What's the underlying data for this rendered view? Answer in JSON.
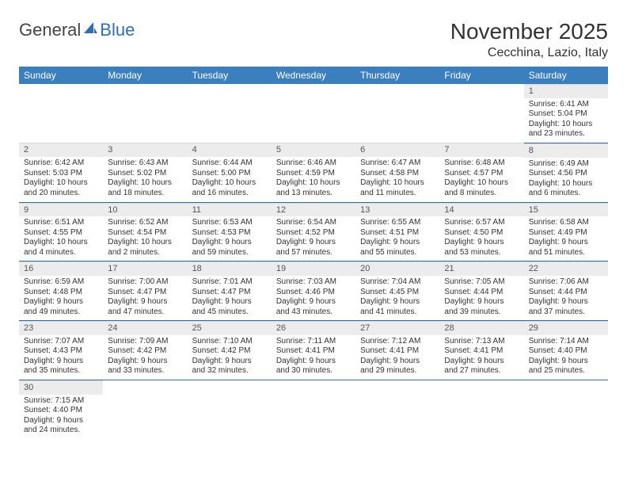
{
  "logo": {
    "text1": "General",
    "text2": "Blue"
  },
  "title": "November 2025",
  "subtitle": "Cecchina, Lazio, Italy",
  "colors": {
    "header_bg": "#3b7fbf",
    "header_text": "#ffffff",
    "daynum_bg": "#ececec",
    "row_sep": "#2f6fb0",
    "logo_accent": "#2f6fb0",
    "page_bg": "#ffffff",
    "body_text": "#333333"
  },
  "fontsize": {
    "title": 28,
    "subtitle": 16,
    "weekday": 12,
    "cell": 10
  },
  "weekdays": [
    "Sunday",
    "Monday",
    "Tuesday",
    "Wednesday",
    "Thursday",
    "Friday",
    "Saturday"
  ],
  "cells": [
    [
      {
        "n": "",
        "sr": "",
        "ss": "",
        "dl1": "",
        "dl2": ""
      },
      {
        "n": "",
        "sr": "",
        "ss": "",
        "dl1": "",
        "dl2": ""
      },
      {
        "n": "",
        "sr": "",
        "ss": "",
        "dl1": "",
        "dl2": ""
      },
      {
        "n": "",
        "sr": "",
        "ss": "",
        "dl1": "",
        "dl2": ""
      },
      {
        "n": "",
        "sr": "",
        "ss": "",
        "dl1": "",
        "dl2": ""
      },
      {
        "n": "",
        "sr": "",
        "ss": "",
        "dl1": "",
        "dl2": ""
      },
      {
        "n": "1",
        "sr": "Sunrise: 6:41 AM",
        "ss": "Sunset: 5:04 PM",
        "dl1": "Daylight: 10 hours",
        "dl2": "and 23 minutes."
      }
    ],
    [
      {
        "n": "2",
        "sr": "Sunrise: 6:42 AM",
        "ss": "Sunset: 5:03 PM",
        "dl1": "Daylight: 10 hours",
        "dl2": "and 20 minutes."
      },
      {
        "n": "3",
        "sr": "Sunrise: 6:43 AM",
        "ss": "Sunset: 5:02 PM",
        "dl1": "Daylight: 10 hours",
        "dl2": "and 18 minutes."
      },
      {
        "n": "4",
        "sr": "Sunrise: 6:44 AM",
        "ss": "Sunset: 5:00 PM",
        "dl1": "Daylight: 10 hours",
        "dl2": "and 16 minutes."
      },
      {
        "n": "5",
        "sr": "Sunrise: 6:46 AM",
        "ss": "Sunset: 4:59 PM",
        "dl1": "Daylight: 10 hours",
        "dl2": "and 13 minutes."
      },
      {
        "n": "6",
        "sr": "Sunrise: 6:47 AM",
        "ss": "Sunset: 4:58 PM",
        "dl1": "Daylight: 10 hours",
        "dl2": "and 11 minutes."
      },
      {
        "n": "7",
        "sr": "Sunrise: 6:48 AM",
        "ss": "Sunset: 4:57 PM",
        "dl1": "Daylight: 10 hours",
        "dl2": "and 8 minutes."
      },
      {
        "n": "8",
        "sr": "Sunrise: 6:49 AM",
        "ss": "Sunset: 4:56 PM",
        "dl1": "Daylight: 10 hours",
        "dl2": "and 6 minutes."
      }
    ],
    [
      {
        "n": "9",
        "sr": "Sunrise: 6:51 AM",
        "ss": "Sunset: 4:55 PM",
        "dl1": "Daylight: 10 hours",
        "dl2": "and 4 minutes."
      },
      {
        "n": "10",
        "sr": "Sunrise: 6:52 AM",
        "ss": "Sunset: 4:54 PM",
        "dl1": "Daylight: 10 hours",
        "dl2": "and 2 minutes."
      },
      {
        "n": "11",
        "sr": "Sunrise: 6:53 AM",
        "ss": "Sunset: 4:53 PM",
        "dl1": "Daylight: 9 hours",
        "dl2": "and 59 minutes."
      },
      {
        "n": "12",
        "sr": "Sunrise: 6:54 AM",
        "ss": "Sunset: 4:52 PM",
        "dl1": "Daylight: 9 hours",
        "dl2": "and 57 minutes."
      },
      {
        "n": "13",
        "sr": "Sunrise: 6:55 AM",
        "ss": "Sunset: 4:51 PM",
        "dl1": "Daylight: 9 hours",
        "dl2": "and 55 minutes."
      },
      {
        "n": "14",
        "sr": "Sunrise: 6:57 AM",
        "ss": "Sunset: 4:50 PM",
        "dl1": "Daylight: 9 hours",
        "dl2": "and 53 minutes."
      },
      {
        "n": "15",
        "sr": "Sunrise: 6:58 AM",
        "ss": "Sunset: 4:49 PM",
        "dl1": "Daylight: 9 hours",
        "dl2": "and 51 minutes."
      }
    ],
    [
      {
        "n": "16",
        "sr": "Sunrise: 6:59 AM",
        "ss": "Sunset: 4:48 PM",
        "dl1": "Daylight: 9 hours",
        "dl2": "and 49 minutes."
      },
      {
        "n": "17",
        "sr": "Sunrise: 7:00 AM",
        "ss": "Sunset: 4:47 PM",
        "dl1": "Daylight: 9 hours",
        "dl2": "and 47 minutes."
      },
      {
        "n": "18",
        "sr": "Sunrise: 7:01 AM",
        "ss": "Sunset: 4:47 PM",
        "dl1": "Daylight: 9 hours",
        "dl2": "and 45 minutes."
      },
      {
        "n": "19",
        "sr": "Sunrise: 7:03 AM",
        "ss": "Sunset: 4:46 PM",
        "dl1": "Daylight: 9 hours",
        "dl2": "and 43 minutes."
      },
      {
        "n": "20",
        "sr": "Sunrise: 7:04 AM",
        "ss": "Sunset: 4:45 PM",
        "dl1": "Daylight: 9 hours",
        "dl2": "and 41 minutes."
      },
      {
        "n": "21",
        "sr": "Sunrise: 7:05 AM",
        "ss": "Sunset: 4:44 PM",
        "dl1": "Daylight: 9 hours",
        "dl2": "and 39 minutes."
      },
      {
        "n": "22",
        "sr": "Sunrise: 7:06 AM",
        "ss": "Sunset: 4:44 PM",
        "dl1": "Daylight: 9 hours",
        "dl2": "and 37 minutes."
      }
    ],
    [
      {
        "n": "23",
        "sr": "Sunrise: 7:07 AM",
        "ss": "Sunset: 4:43 PM",
        "dl1": "Daylight: 9 hours",
        "dl2": "and 35 minutes."
      },
      {
        "n": "24",
        "sr": "Sunrise: 7:09 AM",
        "ss": "Sunset: 4:42 PM",
        "dl1": "Daylight: 9 hours",
        "dl2": "and 33 minutes."
      },
      {
        "n": "25",
        "sr": "Sunrise: 7:10 AM",
        "ss": "Sunset: 4:42 PM",
        "dl1": "Daylight: 9 hours",
        "dl2": "and 32 minutes."
      },
      {
        "n": "26",
        "sr": "Sunrise: 7:11 AM",
        "ss": "Sunset: 4:41 PM",
        "dl1": "Daylight: 9 hours",
        "dl2": "and 30 minutes."
      },
      {
        "n": "27",
        "sr": "Sunrise: 7:12 AM",
        "ss": "Sunset: 4:41 PM",
        "dl1": "Daylight: 9 hours",
        "dl2": "and 29 minutes."
      },
      {
        "n": "28",
        "sr": "Sunrise: 7:13 AM",
        "ss": "Sunset: 4:41 PM",
        "dl1": "Daylight: 9 hours",
        "dl2": "and 27 minutes."
      },
      {
        "n": "29",
        "sr": "Sunrise: 7:14 AM",
        "ss": "Sunset: 4:40 PM",
        "dl1": "Daylight: 9 hours",
        "dl2": "and 25 minutes."
      }
    ],
    [
      {
        "n": "30",
        "sr": "Sunrise: 7:15 AM",
        "ss": "Sunset: 4:40 PM",
        "dl1": "Daylight: 9 hours",
        "dl2": "and 24 minutes."
      },
      {
        "n": "",
        "sr": "",
        "ss": "",
        "dl1": "",
        "dl2": ""
      },
      {
        "n": "",
        "sr": "",
        "ss": "",
        "dl1": "",
        "dl2": ""
      },
      {
        "n": "",
        "sr": "",
        "ss": "",
        "dl1": "",
        "dl2": ""
      },
      {
        "n": "",
        "sr": "",
        "ss": "",
        "dl1": "",
        "dl2": ""
      },
      {
        "n": "",
        "sr": "",
        "ss": "",
        "dl1": "",
        "dl2": ""
      },
      {
        "n": "",
        "sr": "",
        "ss": "",
        "dl1": "",
        "dl2": ""
      }
    ]
  ]
}
